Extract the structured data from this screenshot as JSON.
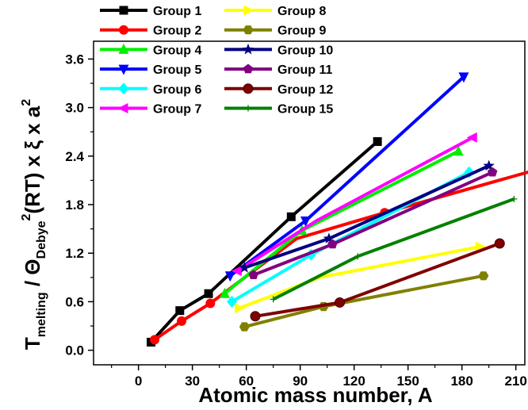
{
  "chart_data": {
    "type": "line",
    "xlabel": "Atomic mass number, A",
    "ylabel": {
      "main": "T",
      "main_sub": "melting",
      "sep": " / Θ",
      "theta_sub": "Debye",
      "sup2": "2",
      "rest": "(RT) x ξ x a",
      "sup_a": "2"
    },
    "xlim": [
      -25,
      215
    ],
    "ylim": [
      -0.18,
      3.82
    ],
    "xticks": [
      0,
      30,
      60,
      90,
      120,
      150,
      180,
      210
    ],
    "yticks": [
      0.0,
      0.6,
      1.2,
      1.8,
      2.4,
      3.0,
      3.6
    ],
    "xtick_labels": [
      "0",
      "30",
      "60",
      "90",
      "120",
      "150",
      "180",
      "210"
    ],
    "ytick_labels": [
      "0.0",
      "0.6",
      "1.2",
      "1.8",
      "2.4",
      "3.0",
      "3.6"
    ],
    "grid": false,
    "legend_position": "top-left",
    "series": [
      {
        "name": "Group 1",
        "color": "#000000",
        "marker": "square",
        "x": [
          7,
          23,
          39,
          85,
          133
        ],
        "y": [
          0.1,
          0.49,
          0.7,
          1.65,
          2.58
        ],
        "marker_x": [
          7,
          23,
          39,
          85,
          133
        ]
      },
      {
        "name": "Group 2",
        "color": "#ff0000",
        "marker": "circle",
        "x": [
          9,
          24,
          40,
          88,
          137,
          226
        ],
        "y": [
          0.13,
          0.36,
          0.58,
          1.38,
          1.7,
          2.26
        ],
        "marker_x": [
          9,
          24,
          40,
          137
        ]
      },
      {
        "name": "Group 4",
        "color": "#00ee00",
        "marker": "triangle-up",
        "x": [
          48,
          91,
          178
        ],
        "y": [
          0.7,
          1.48,
          2.46
        ],
        "marker_x": [
          48,
          91,
          178
        ]
      },
      {
        "name": "Group 5",
        "color": "#0000ff",
        "marker": "triangle-down",
        "x": [
          51,
          93,
          181
        ],
        "y": [
          0.92,
          1.6,
          3.38
        ],
        "marker_x": [
          51,
          93,
          181
        ]
      },
      {
        "name": "Group 6",
        "color": "#00ffff",
        "marker": "diamond",
        "x": [
          52,
          96,
          184
        ],
        "y": [
          0.6,
          1.18,
          2.2
        ],
        "marker_x": [
          52,
          96,
          184
        ]
      },
      {
        "name": "Group 7",
        "color": "#ff00ff",
        "marker": "triangle-left",
        "x": [
          55,
          99,
          186
        ],
        "y": [
          0.98,
          1.6,
          2.63
        ],
        "marker_x": [
          55,
          186
        ]
      },
      {
        "name": "Group 8",
        "color": "#ffff00",
        "marker": "triangle-right",
        "x": [
          56,
          101,
          190
        ],
        "y": [
          0.52,
          0.9,
          1.28
        ],
        "marker_x": [
          56,
          190
        ]
      },
      {
        "name": "Group 9",
        "color": "#808000",
        "marker": "hexagon",
        "x": [
          59,
          103,
          192
        ],
        "y": [
          0.29,
          0.54,
          0.92
        ],
        "marker_x": [
          59,
          103,
          192
        ]
      },
      {
        "name": "Group 10",
        "color": "#000080",
        "marker": "star",
        "x": [
          59,
          106,
          195
        ],
        "y": [
          1.02,
          1.38,
          2.28
        ],
        "marker_x": [
          59,
          106,
          195
        ]
      },
      {
        "name": "Group 11",
        "color": "#800080",
        "marker": "pentagon",
        "x": [
          64,
          108,
          197
        ],
        "y": [
          0.93,
          1.31,
          2.2
        ],
        "marker_x": [
          64,
          108,
          197
        ]
      },
      {
        "name": "Group 12",
        "color": "#800000",
        "marker": "ball",
        "x": [
          65,
          112,
          201
        ],
        "y": [
          0.42,
          0.59,
          1.32
        ],
        "marker_x": [
          65,
          112,
          201
        ]
      },
      {
        "name": "Group 15",
        "color": "#008000",
        "marker": "plus",
        "x": [
          75,
          122,
          209
        ],
        "y": [
          0.63,
          1.16,
          1.87
        ],
        "marker_x": [
          75,
          122,
          209
        ]
      }
    ]
  }
}
